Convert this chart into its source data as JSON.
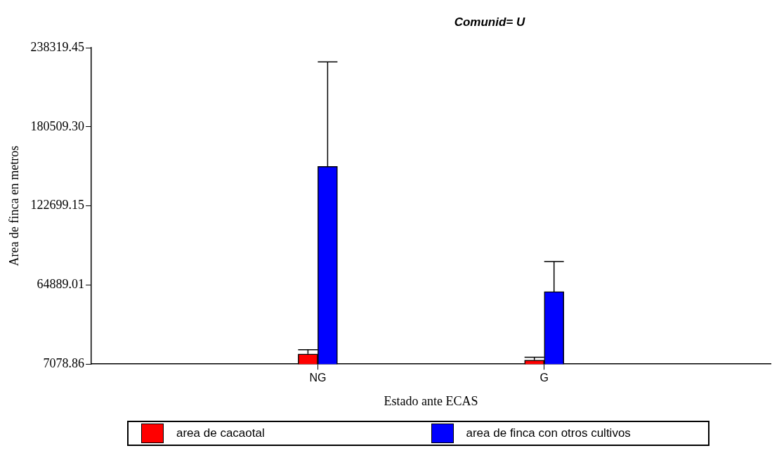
{
  "chart_data": {
    "type": "bar",
    "title": "Comunid= U",
    "xlabel": "Estado ante ECAS",
    "ylabel": "Area de finca en metros",
    "categories": [
      "NG",
      "G"
    ],
    "series": [
      {
        "name": "area de cacaotal",
        "color": "#ff0000",
        "values": [
          14500,
          10000
        ],
        "errors": [
          [
            14500,
            17500
          ],
          [
            10000,
            12000
          ]
        ]
      },
      {
        "name": "area de finca con otros cultivos",
        "color": "#0000ff",
        "values": [
          151500,
          60000
        ],
        "errors": [
          [
            151500,
            228000
          ],
          [
            60000,
            82000
          ]
        ]
      }
    ],
    "ylim": [
      7078.86,
      238319.45
    ],
    "yticks": [
      {
        "value": 7078.86,
        "label": "7078.86"
      },
      {
        "value": 64889.01,
        "label": "64889.01"
      },
      {
        "value": 122699.15,
        "label": "122699.15"
      },
      {
        "value": 180509.3,
        "label": "180509.30"
      },
      {
        "value": 238319.45,
        "label": "238319.45"
      }
    ],
    "grid": false,
    "legend": "bottom"
  }
}
